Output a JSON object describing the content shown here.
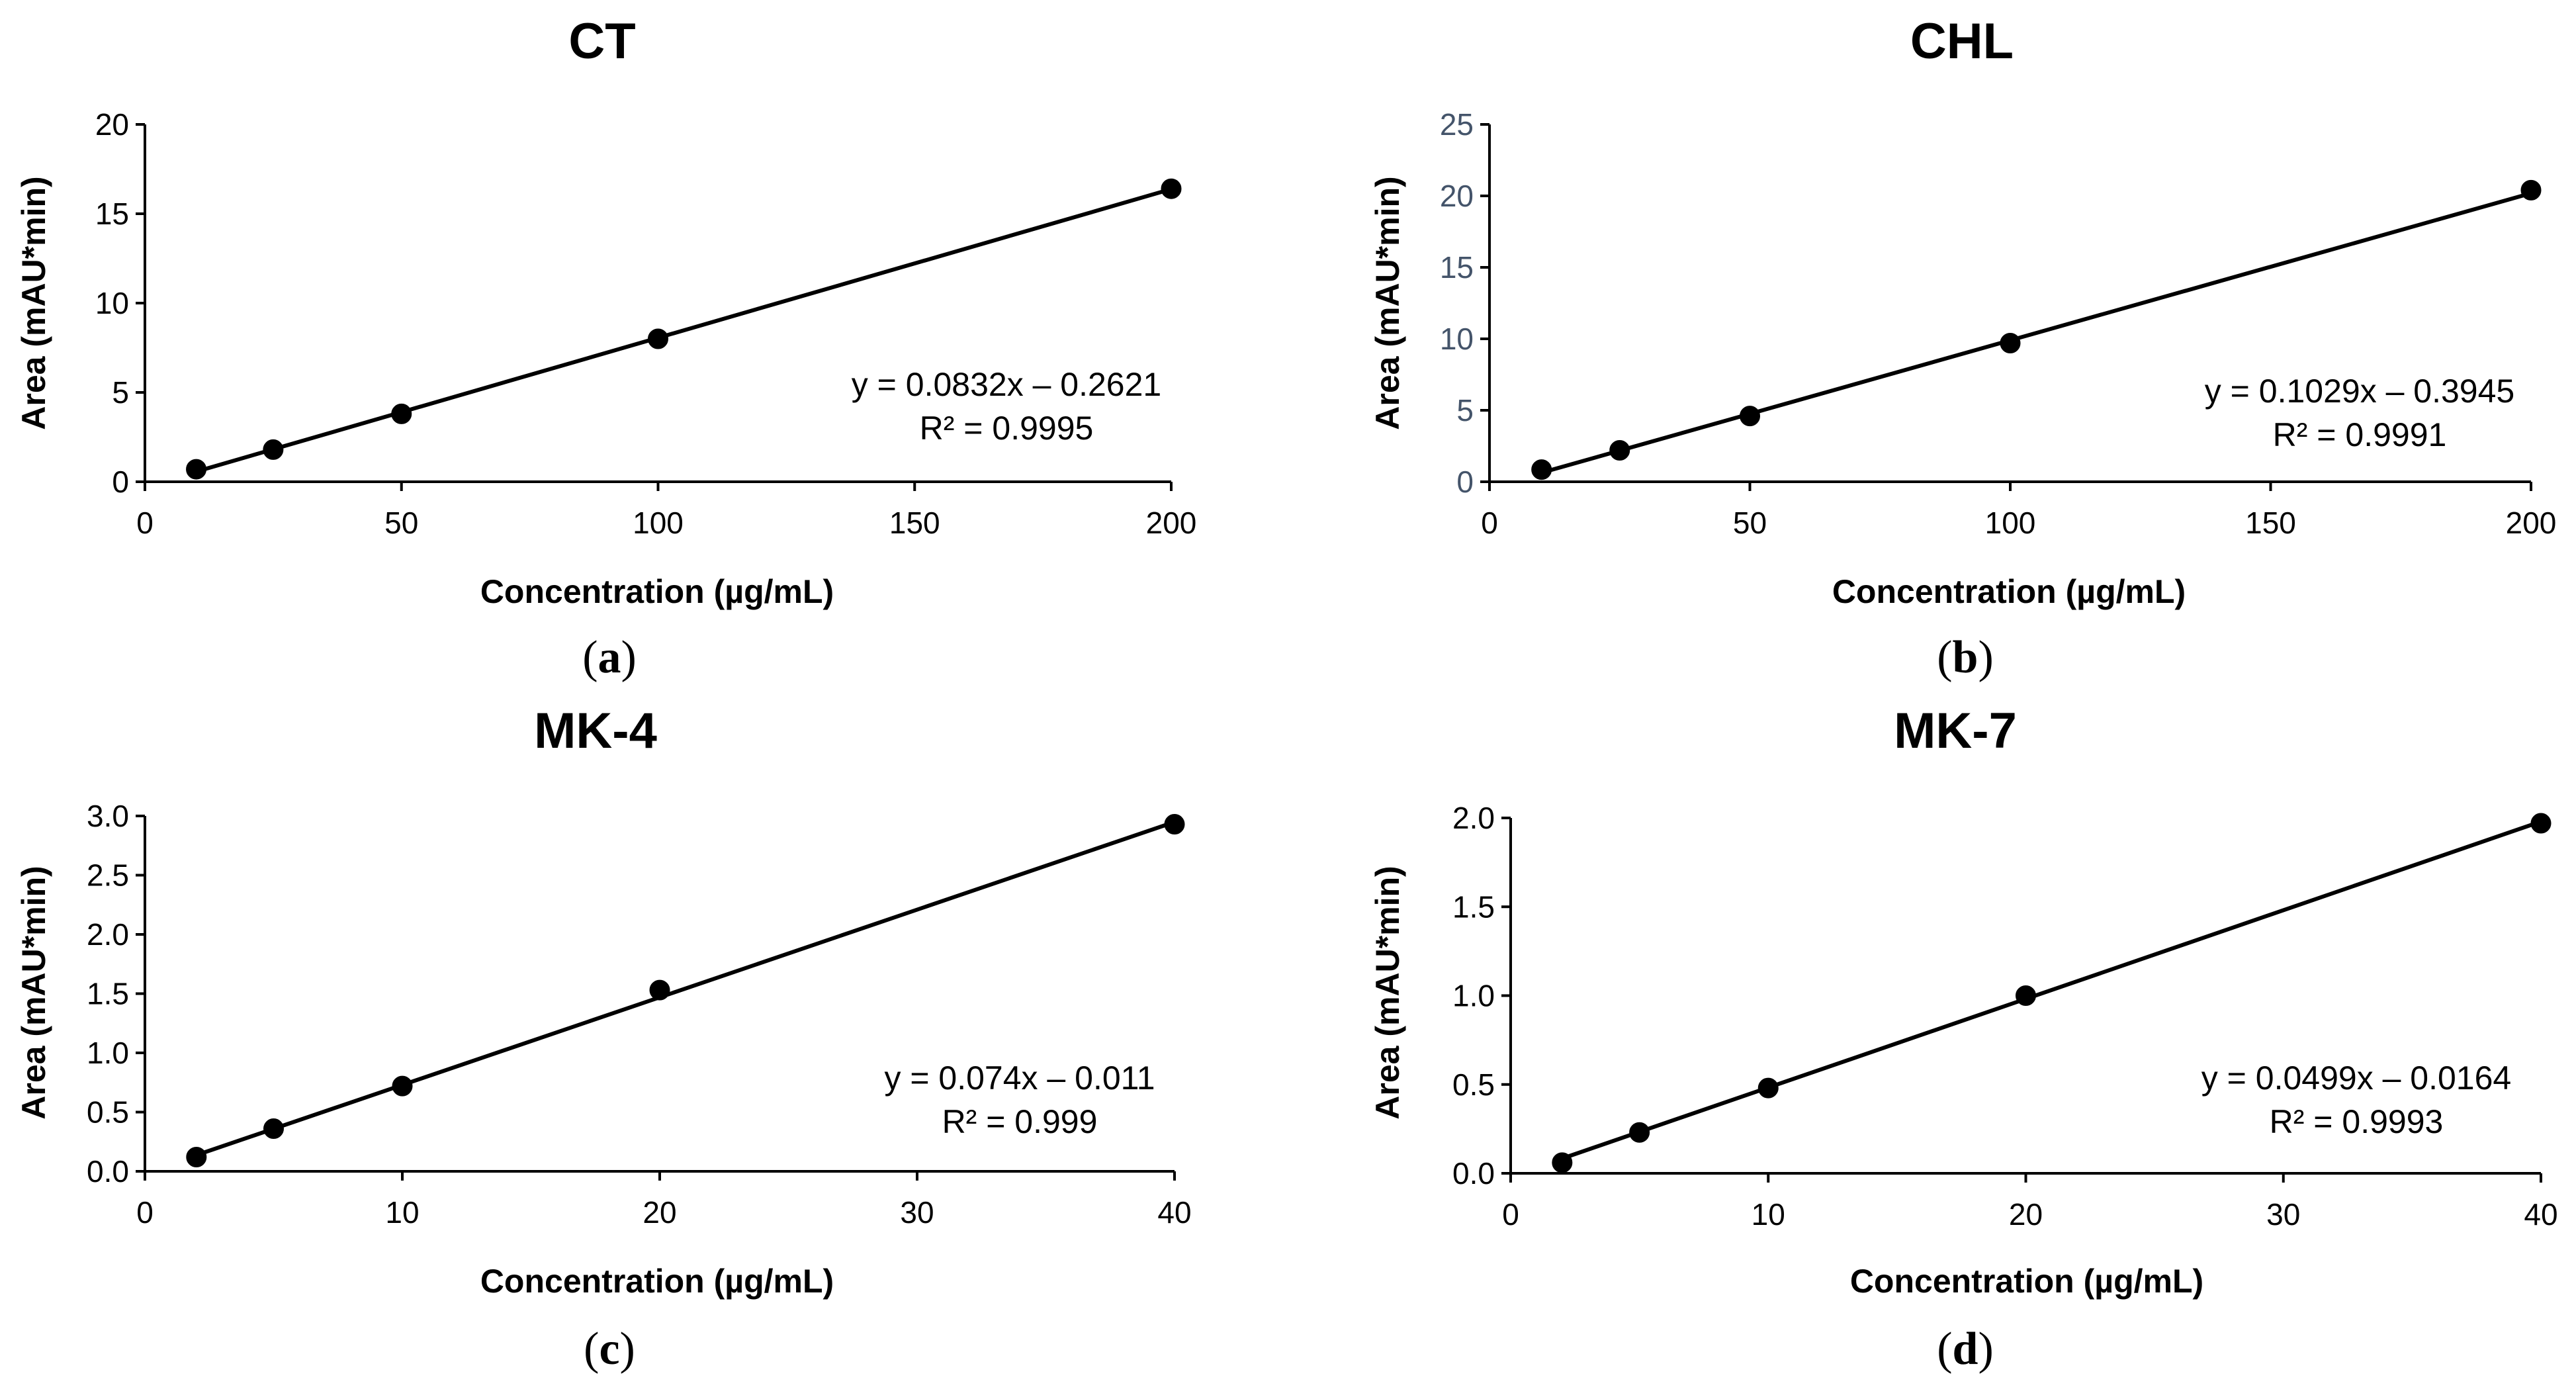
{
  "chart_data": [
    {
      "type": "scatter",
      "title": "CT",
      "panel_label": "a",
      "xlabel": "Concentration (µg/mL)",
      "ylabel": "Area (mAU*min)",
      "xlim": [
        0,
        200
      ],
      "ylim": [
        0,
        20
      ],
      "xticks": [
        "0",
        "50",
        "100",
        "150",
        "200"
      ],
      "yticks": [
        "0",
        "5",
        "10",
        "15",
        "20"
      ],
      "x": [
        10,
        25,
        50,
        100,
        200
      ],
      "y": [
        0.7,
        1.8,
        3.8,
        8.0,
        16.4
      ],
      "trendline": {
        "slope": 0.0832,
        "intercept": -0.2621
      },
      "equation": "y = 0.0832x – 0.2621",
      "r_squared": "R² = 0.9995",
      "marker_color": "#595959",
      "tick_color": "#000000",
      "grid": false
    },
    {
      "type": "scatter",
      "title": "CHL",
      "panel_label": "b",
      "xlabel": "Concentration (µg/mL)",
      "ylabel": "Area (mAU*min)",
      "xlim": [
        0,
        200
      ],
      "ylim": [
        0,
        25
      ],
      "xticks": [
        "0",
        "50",
        "100",
        "150",
        "200"
      ],
      "yticks": [
        "0",
        "5",
        "10",
        "15",
        "20",
        "25"
      ],
      "x": [
        10,
        25,
        50,
        100,
        200
      ],
      "y": [
        0.85,
        2.2,
        4.6,
        9.7,
        20.4
      ],
      "trendline": {
        "slope": 0.1029,
        "intercept": -0.3945
      },
      "equation": "y = 0.1029x – 0.3945",
      "r_squared": "R² = 0.9991",
      "marker_color": "#000000",
      "tick_color": "#44546a",
      "grid": false
    },
    {
      "type": "scatter",
      "title": "MK-4",
      "panel_label": "c",
      "xlabel": "Concentration (µg/mL)",
      "ylabel": "Area (mAU*min)",
      "xlim": [
        0,
        40
      ],
      "ylim": [
        0,
        3.0
      ],
      "xticks": [
        "0",
        "10",
        "20",
        "30",
        "40"
      ],
      "yticks": [
        "0.0",
        "0.5",
        "1.0",
        "1.5",
        "2.0",
        "2.5",
        "3.0"
      ],
      "x": [
        2,
        5,
        10,
        20,
        40
      ],
      "y": [
        0.12,
        0.36,
        0.72,
        1.53,
        2.93
      ],
      "trendline": {
        "slope": 0.074,
        "intercept": -0.011
      },
      "equation": "y = 0.074x – 0.011",
      "r_squared": "R² = 0.999",
      "marker_color": "#000000",
      "tick_color": "#000000",
      "grid": false
    },
    {
      "type": "scatter",
      "title": "MK-7",
      "panel_label": "d",
      "xlabel": "Concentration (µg/mL)",
      "ylabel": "Area (mAU*min)",
      "xlim": [
        0,
        40
      ],
      "ylim": [
        0,
        2.0
      ],
      "xticks": [
        "0",
        "10",
        "20",
        "30",
        "40"
      ],
      "yticks": [
        "0.0",
        "0.5",
        "1.0",
        "1.5",
        "2.0"
      ],
      "x": [
        2,
        5,
        10,
        20,
        40
      ],
      "y": [
        0.06,
        0.23,
        0.48,
        1.0,
        1.97
      ],
      "trendline": {
        "slope": 0.0499,
        "intercept": -0.0164
      },
      "equation": "y = 0.0499x – 0.0164",
      "r_squared": "R² = 0.9993",
      "marker_color": "#000000",
      "tick_color": "#000000",
      "grid": false
    }
  ]
}
